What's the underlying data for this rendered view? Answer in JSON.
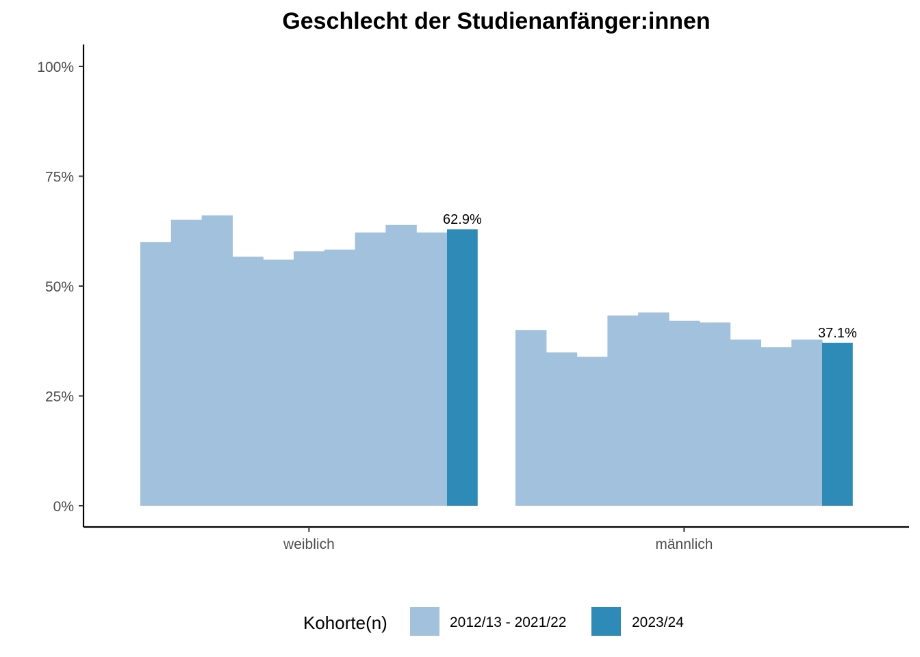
{
  "chart_data": {
    "type": "bar",
    "title": "Geschlecht der Studienanfänger:innen",
    "xlabel": "",
    "ylabel": "",
    "ylim": [
      0,
      1.05
    ],
    "yticks": [
      0,
      0.25,
      0.5,
      0.75,
      1.0
    ],
    "ytick_labels": [
      "0%",
      "25%",
      "50%",
      "75%",
      "100%"
    ],
    "categories": [
      "weiblich",
      "männlich"
    ],
    "groups": [
      {
        "category": "weiblich",
        "history": [
          0.6,
          0.651,
          0.661,
          0.567,
          0.56,
          0.579,
          0.583,
          0.622,
          0.639,
          0.622
        ],
        "current": 0.629,
        "current_label": "62.9%"
      },
      {
        "category": "männlich",
        "history": [
          0.4,
          0.349,
          0.339,
          0.433,
          0.44,
          0.421,
          0.417,
          0.378,
          0.361,
          0.378
        ],
        "current": 0.371,
        "current_label": "37.1%"
      }
    ],
    "series": [
      {
        "name": "2012/13 - 2021/22",
        "color": "#a1c1dd"
      },
      {
        "name": "2023/24",
        "color": "#2e8ab6"
      }
    ],
    "legend": {
      "title": "Kohorte(n)",
      "position": "bottom"
    },
    "grid": false
  }
}
